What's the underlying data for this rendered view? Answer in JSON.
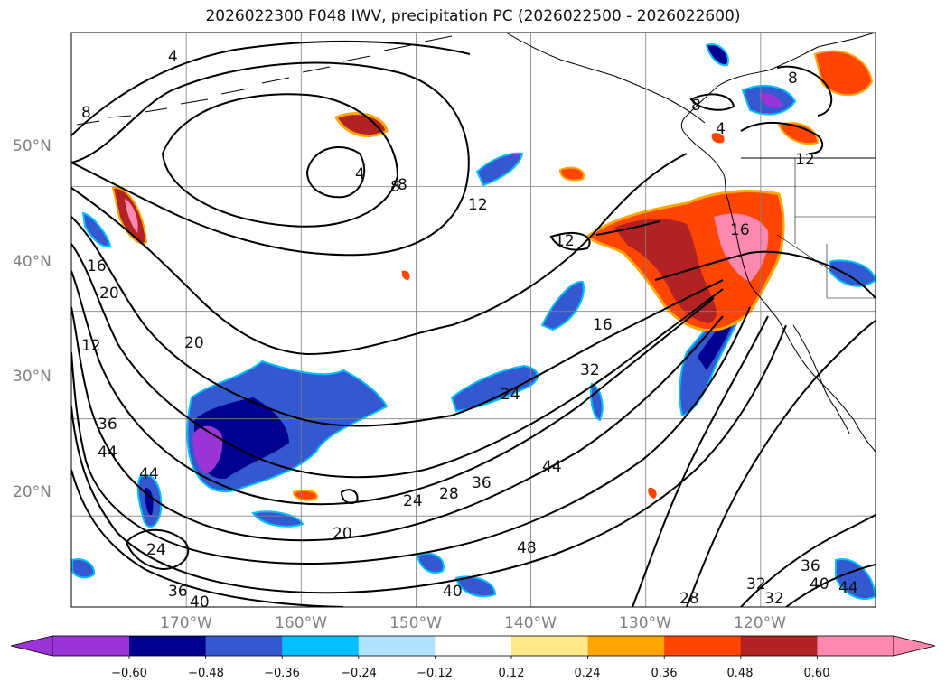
{
  "title": "2026022300 F048 IWV, precipitation PC (2026022500 - 2026022600)",
  "map": {
    "projection": "mercator",
    "extent": {
      "lon_min": -180,
      "lon_max": -110,
      "lat_min": 10,
      "lat_max": 60
    },
    "lat_labels": [
      "50°N",
      "40°N",
      "30°N",
      "20°N"
    ],
    "lon_labels": [
      "170°W",
      "160°W",
      "150°W",
      "140°W",
      "130°W",
      "120°W"
    ],
    "grid": true,
    "features": [
      "coastlines",
      "country-borders",
      "state-borders"
    ]
  },
  "contour_labels": [
    "4",
    "8",
    "8",
    "4",
    "8",
    "12",
    "12",
    "16",
    "20",
    "20",
    "16",
    "12",
    "36",
    "44",
    "44",
    "24",
    "20",
    "24",
    "28",
    "36",
    "32",
    "44",
    "48",
    "40",
    "40",
    "36",
    "28",
    "32",
    "32",
    "36",
    "40",
    "44",
    "8",
    "8",
    "4",
    "12",
    "16",
    "24"
  ],
  "colorbar": {
    "ticks": [
      "−0.60",
      "−0.48",
      "−0.36",
      "−0.24",
      "−0.12",
      "0.12",
      "0.24",
      "0.36",
      "0.48",
      "0.60"
    ],
    "colors": [
      "#9a34d6",
      "#000090",
      "#3458d0",
      "#00bfff",
      "#b0e2ff",
      "#ffffff",
      "#ffe88a",
      "#ffa500",
      "#ff4500",
      "#b22222",
      "#ff88b0",
      "#ff88b0"
    ]
  }
}
